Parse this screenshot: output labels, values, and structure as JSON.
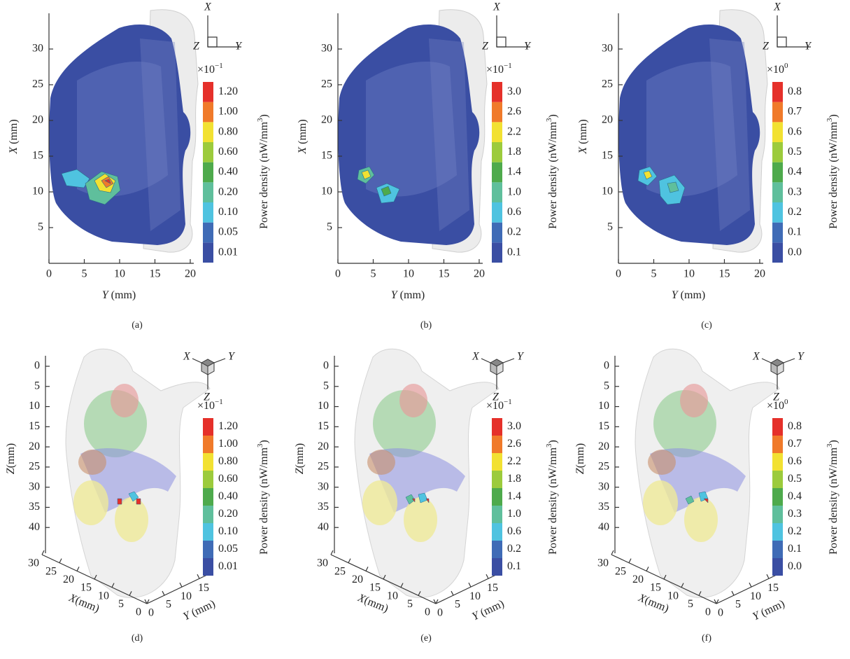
{
  "colormap": [
    "#3a4ea3",
    "#3f6bb6",
    "#4fc3e0",
    "#5fbf9c",
    "#4eaa4c",
    "#9ccb3c",
    "#f2e132",
    "#f07a2a",
    "#e5302a"
  ],
  "panels": [
    {
      "kind": "2d",
      "label": "(a)",
      "xlim": [
        0,
        20.5
      ],
      "ylim": [
        0,
        35
      ],
      "xticks": [
        0,
        5,
        10,
        15,
        20
      ],
      "yticks": [
        5,
        10,
        15,
        20,
        25,
        30
      ],
      "x_var": "Y",
      "x_unit": "(mm)",
      "y_var": "X",
      "y_unit": "(mm)",
      "orientation": [
        "X",
        "Z",
        "Y"
      ],
      "colorbar": {
        "base": "×10",
        "power": "−1",
        "label": "Power density (nW/mm",
        "label_sup": "3",
        "label_end": ")",
        "ticks": [
          "0.01",
          "0.05",
          "0.10",
          "0.20",
          "0.40",
          "0.60",
          "0.80",
          "1.00",
          "1.20"
        ]
      }
    },
    {
      "kind": "2d",
      "label": "(b)",
      "xlim": [
        0,
        20.5
      ],
      "ylim": [
        0,
        35
      ],
      "xticks": [
        0,
        5,
        10,
        15,
        20
      ],
      "yticks": [
        5,
        10,
        15,
        20,
        25,
        30
      ],
      "x_var": "Y",
      "x_unit": "(mm)",
      "y_var": "X",
      "y_unit": "(mm)",
      "orientation": [
        "X",
        "Z",
        "Y"
      ],
      "colorbar": {
        "base": "×10",
        "power": "−1",
        "label": "Power density (nW/mm",
        "label_sup": "3",
        "label_end": ")",
        "ticks": [
          "0.1",
          "0.2",
          "0.6",
          "1.0",
          "1.4",
          "1.8",
          "2.2",
          "2.6",
          "3.0"
        ]
      }
    },
    {
      "kind": "2d",
      "label": "(c)",
      "xlim": [
        0,
        20.5
      ],
      "ylim": [
        0,
        35
      ],
      "xticks": [
        0,
        5,
        10,
        15,
        20
      ],
      "yticks": [
        5,
        10,
        15,
        20,
        25,
        30
      ],
      "x_var": "Y",
      "x_unit": "(mm)",
      "y_var": "X",
      "y_unit": "(mm)",
      "orientation": [
        "X",
        "Z",
        "Y"
      ],
      "colorbar": {
        "base": "×10",
        "power": "0",
        "label": "Power density (nW/mm",
        "label_sup": "3",
        "label_end": ")",
        "ticks": [
          "0.0",
          "0.1",
          "0.2",
          "0.3",
          "0.4",
          "0.5",
          "0.6",
          "0.7",
          "0.8"
        ]
      }
    },
    {
      "kind": "3d",
      "label": "(d)",
      "zlim": [
        0,
        45
      ],
      "xlim": [
        0,
        30
      ],
      "ylim": [
        0,
        18
      ],
      "zticks": [
        0,
        5,
        10,
        15,
        20,
        25,
        30,
        35,
        40
      ],
      "xticks": [
        30,
        25,
        20,
        15,
        10,
        5,
        0
      ],
      "yticks": [
        0,
        5,
        10,
        15
      ],
      "z_var": "Z",
      "z_unit": "(mm)",
      "x_var": "X",
      "x_unit": "(mm)",
      "y_var": "Y",
      "y_unit": "(mm)",
      "orientation": [
        "X",
        "Y",
        "Z"
      ],
      "colorbar": {
        "base": "×10",
        "power": "−1",
        "label": "Power density (nW/mm",
        "label_sup": "3",
        "label_end": ")",
        "ticks": [
          "0.01",
          "0.05",
          "0.10",
          "0.20",
          "0.40",
          "0.60",
          "0.80",
          "1.00",
          "1.20"
        ]
      }
    },
    {
      "kind": "3d",
      "label": "(e)",
      "zlim": [
        0,
        45
      ],
      "xlim": [
        0,
        30
      ],
      "ylim": [
        0,
        18
      ],
      "zticks": [
        0,
        5,
        10,
        15,
        20,
        25,
        30,
        35,
        40
      ],
      "xticks": [
        30,
        25,
        20,
        15,
        10,
        5,
        0
      ],
      "yticks": [
        0,
        5,
        10,
        15
      ],
      "z_var": "Z",
      "z_unit": "(mm)",
      "x_var": "X",
      "x_unit": "(mm)",
      "y_var": "Y",
      "y_unit": "(mm)",
      "orientation": [
        "X",
        "Y",
        "Z"
      ],
      "colorbar": {
        "base": "×10",
        "power": "−1",
        "label": "Power density (nW/mm",
        "label_sup": "3",
        "label_end": ")",
        "ticks": [
          "0.1",
          "0.2",
          "0.6",
          "1.0",
          "1.4",
          "1.8",
          "2.2",
          "2.6",
          "3.0"
        ]
      }
    },
    {
      "kind": "3d",
      "label": "(f)",
      "zlim": [
        0,
        45
      ],
      "xlim": [
        0,
        30
      ],
      "ylim": [
        0,
        18
      ],
      "zticks": [
        0,
        5,
        10,
        15,
        20,
        25,
        30,
        35,
        40
      ],
      "xticks": [
        30,
        25,
        20,
        15,
        10,
        5,
        0
      ],
      "yticks": [
        0,
        5,
        10,
        15
      ],
      "z_var": "Z",
      "z_unit": "(mm)",
      "x_var": "X",
      "x_unit": "(mm)",
      "y_var": "Y",
      "y_unit": "(mm)",
      "orientation": [
        "X",
        "Y",
        "Z"
      ],
      "colorbar": {
        "base": "×10",
        "power": "0",
        "label": "Power density (nW/mm",
        "label_sup": "3",
        "label_end": ")",
        "ticks": [
          "0.0",
          "0.1",
          "0.2",
          "0.3",
          "0.4",
          "0.5",
          "0.6",
          "0.7",
          "0.8"
        ]
      }
    }
  ]
}
